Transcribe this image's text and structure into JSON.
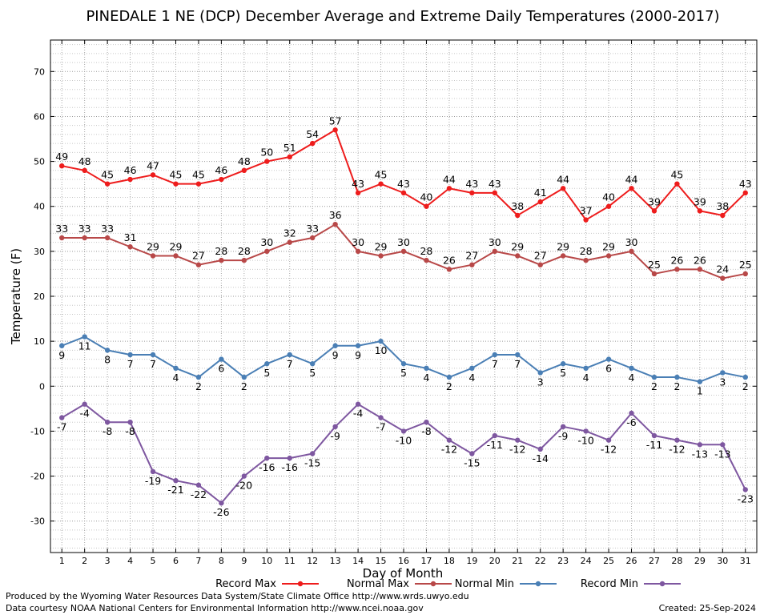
{
  "footer": {
    "produced_by": "Produced by the Wyoming Water Resources Data System/State Climate Office http://www.wrds.uwyo.edu",
    "courtesy": "Data courtesy NOAA National Centers for Environmental Information http://www.ncei.noaa.gov",
    "created": "Created:  25-Sep-2024"
  },
  "chart_data": {
    "type": "line",
    "title": "PINEDALE 1 NE (DCP) December Average and Extreme Daily Temperatures (2000-2017)",
    "xlabel": "Day of Month",
    "ylabel": "Temperature (F)",
    "xlim": [
      0.5,
      31.5
    ],
    "ylim": [
      -37,
      77
    ],
    "yticks": [
      -30,
      -20,
      -10,
      0,
      10,
      20,
      30,
      40,
      50,
      60,
      70
    ],
    "x": [
      1,
      2,
      3,
      4,
      5,
      6,
      7,
      8,
      9,
      10,
      11,
      12,
      13,
      14,
      15,
      16,
      17,
      18,
      19,
      20,
      21,
      22,
      23,
      24,
      25,
      26,
      27,
      28,
      29,
      30,
      31
    ],
    "grid": true,
    "legend_position": "bottom",
    "series": [
      {
        "name": "Record Max",
        "color": "#ee1c1c",
        "label_position": "above",
        "values": [
          49,
          48,
          45,
          46,
          47,
          45,
          45,
          46,
          48,
          50,
          51,
          54,
          57,
          43,
          45,
          43,
          40,
          44,
          43,
          43,
          38,
          41,
          44,
          37,
          40,
          44,
          39,
          45,
          39,
          38,
          43
        ]
      },
      {
        "name": "Normal Max",
        "color": "#b84848",
        "label_position": "above",
        "values": [
          33,
          33,
          33,
          31,
          29,
          29,
          27,
          28,
          28,
          30,
          32,
          33,
          36,
          30,
          29,
          30,
          28,
          26,
          27,
          30,
          29,
          27,
          29,
          28,
          29,
          30,
          25,
          26,
          26,
          24,
          25
        ]
      },
      {
        "name": "Normal Min",
        "color": "#4a7fb5",
        "label_position": "below",
        "values": [
          9,
          11,
          8,
          7,
          7,
          4,
          2,
          6,
          2,
          5,
          7,
          5,
          9,
          9,
          10,
          5,
          4,
          2,
          4,
          7,
          7,
          3,
          5,
          4,
          6,
          4,
          2,
          2,
          1,
          3,
          2
        ]
      },
      {
        "name": "Record Min",
        "color": "#7e57a0",
        "label_position": "below",
        "values": [
          -7,
          -4,
          -8,
          -8,
          -19,
          -21,
          -22,
          -26,
          -20,
          -16,
          -16,
          -15,
          -9,
          -4,
          -7,
          -10,
          -8,
          -12,
          -15,
          -11,
          -12,
          -14,
          -9,
          -10,
          -12,
          -6,
          -11,
          -12,
          -13,
          -13,
          -23
        ]
      }
    ]
  }
}
